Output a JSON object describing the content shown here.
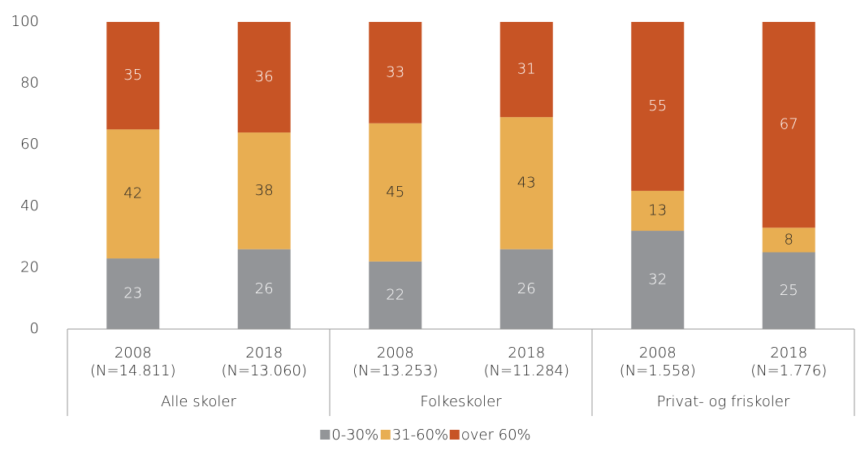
{
  "chart_data": {
    "type": "stacked_bar",
    "categories": [
      [
        "2008",
        "(N=14.811)"
      ],
      [
        "2018",
        "(N=13.060)"
      ],
      [
        "2008",
        "(N=13.253)"
      ],
      [
        "2018",
        "(N=11.284)"
      ],
      [
        "2008",
        "(N=1.558)"
      ],
      [
        "2018",
        "(N=1.776)"
      ]
    ],
    "groups": [
      "Alle skoler",
      "Folkeskoler",
      "Privat- og friskoler"
    ],
    "series": [
      {
        "name": "0-30%",
        "color": "#939598",
        "values": [
          23,
          26,
          22,
          26,
          32,
          25
        ]
      },
      {
        "name": "31-60%",
        "color": "#e8ae52",
        "values": [
          42,
          38,
          45,
          43,
          13,
          8
        ]
      },
      {
        "name": "over 60%",
        "color": "#c75425",
        "values": [
          35,
          36,
          33,
          31,
          55,
          67
        ]
      }
    ],
    "ylim": [
      0,
      100
    ],
    "yticks": [
      0,
      20,
      40,
      60,
      80,
      100
    ],
    "grid": false,
    "legend": "bottom"
  }
}
